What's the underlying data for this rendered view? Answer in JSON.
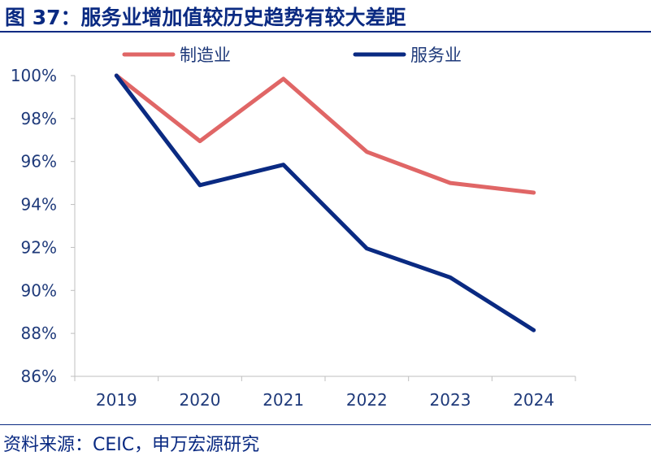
{
  "header": {
    "title": "图 37：服务业增加值较历史趋势有较大差距"
  },
  "footer": {
    "source": "资料来源：CEIC，申万宏源研究"
  },
  "chart_data": {
    "type": "line",
    "title": "图 37：服务业增加值较历史趋势有较大差距",
    "xlabel": "",
    "ylabel": "",
    "x": [
      "2019",
      "2020",
      "2021",
      "2022",
      "2023",
      "2024"
    ],
    "ylim": [
      86,
      100
    ],
    "yticks": [
      100,
      98,
      96,
      94,
      92,
      90,
      88,
      86
    ],
    "ytick_labels": [
      "100%",
      "98%",
      "96%",
      "94%",
      "92%",
      "90%",
      "88%",
      "86%"
    ],
    "legend_position": "top",
    "grid": false,
    "series": [
      {
        "name": "制造业",
        "color": "#e06666",
        "values": [
          100,
          96.95,
          99.85,
          96.45,
          95.0,
          94.55
        ]
      },
      {
        "name": "服务业",
        "color": "#0a2a82",
        "values": [
          100,
          94.9,
          95.85,
          91.95,
          90.6,
          88.15
        ]
      }
    ]
  }
}
